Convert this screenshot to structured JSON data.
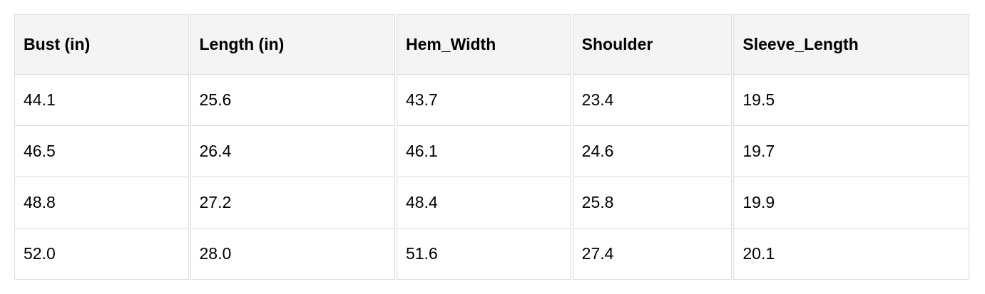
{
  "table": {
    "headers": [
      "Bust (in)",
      "Length (in)",
      "Hem_Width",
      "Shoulder",
      "Sleeve_Length"
    ],
    "rows": [
      [
        "44.1",
        "25.6",
        "43.7",
        "23.4",
        "19.5"
      ],
      [
        "46.5",
        "26.4",
        "46.1",
        "24.6",
        "19.7"
      ],
      [
        "48.8",
        "27.2",
        "48.4",
        "25.8",
        "19.9"
      ],
      [
        "52.0",
        "28.0",
        "51.6",
        "27.4",
        "20.1"
      ]
    ]
  }
}
